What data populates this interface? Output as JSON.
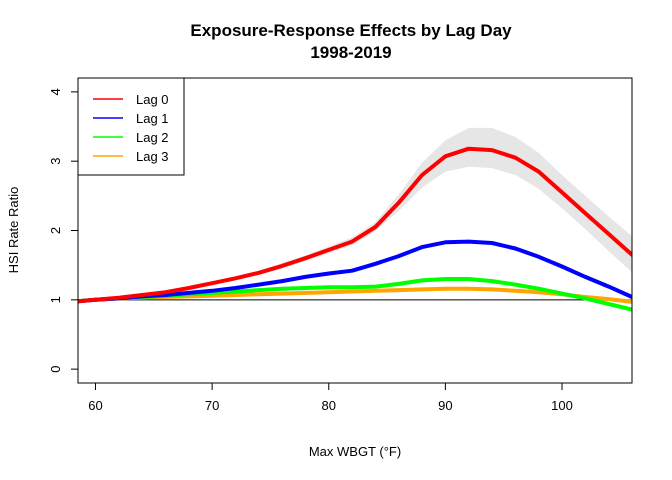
{
  "chart_data": {
    "type": "line",
    "title": "Exposure-Response Effects by Lag Day",
    "subtitle": "1998-2019",
    "xlabel": "Max WBGT (°F)",
    "ylabel": "HSI Rate Ratio",
    "xlim": [
      58.5,
      106
    ],
    "ylim": [
      -0.2,
      4.2
    ],
    "x_ticks": [
      60,
      70,
      80,
      90,
      100
    ],
    "y_ticks": [
      0,
      1,
      2,
      3,
      4
    ],
    "reference_line": 1,
    "legend_position": "top-left",
    "x": [
      58.5,
      60,
      62,
      64,
      66,
      68,
      70,
      72,
      74,
      76,
      78,
      80,
      82,
      84,
      86,
      88,
      90,
      92,
      94,
      96,
      98,
      100,
      102,
      104,
      106
    ],
    "series": [
      {
        "name": "Lag 0",
        "color": "#ff0000",
        "values": [
          0.98,
          1.0,
          1.03,
          1.07,
          1.11,
          1.17,
          1.24,
          1.31,
          1.39,
          1.49,
          1.6,
          1.72,
          1.84,
          2.05,
          2.4,
          2.8,
          3.07,
          3.18,
          3.16,
          3.05,
          2.85,
          2.55,
          2.25,
          1.95,
          1.65
        ],
        "ci_lower": [
          0.97,
          1.0,
          1.03,
          1.06,
          1.1,
          1.16,
          1.22,
          1.29,
          1.36,
          1.45,
          1.56,
          1.67,
          1.79,
          1.99,
          2.28,
          2.62,
          2.85,
          2.92,
          2.9,
          2.8,
          2.6,
          2.32,
          2.02,
          1.7,
          1.4
        ],
        "ci_upper": [
          0.99,
          1.0,
          1.04,
          1.08,
          1.12,
          1.18,
          1.26,
          1.33,
          1.42,
          1.53,
          1.64,
          1.77,
          1.9,
          2.12,
          2.52,
          2.98,
          3.3,
          3.48,
          3.48,
          3.35,
          3.12,
          2.8,
          2.5,
          2.2,
          1.92
        ]
      },
      {
        "name": "Lag 1",
        "color": "#0000ff",
        "values": [
          0.98,
          1.0,
          1.02,
          1.05,
          1.07,
          1.1,
          1.13,
          1.17,
          1.22,
          1.27,
          1.33,
          1.38,
          1.42,
          1.52,
          1.63,
          1.76,
          1.83,
          1.84,
          1.82,
          1.74,
          1.62,
          1.48,
          1.33,
          1.19,
          1.04
        ]
      },
      {
        "name": "Lag 2",
        "color": "#00ff00",
        "values": [
          0.98,
          1.0,
          1.02,
          1.04,
          1.06,
          1.08,
          1.1,
          1.12,
          1.14,
          1.16,
          1.17,
          1.18,
          1.18,
          1.19,
          1.23,
          1.28,
          1.3,
          1.3,
          1.27,
          1.22,
          1.16,
          1.09,
          1.02,
          0.94,
          0.86
        ]
      },
      {
        "name": "Lag 3",
        "color": "#ffa500",
        "values": [
          0.98,
          1.0,
          1.02,
          1.03,
          1.04,
          1.05,
          1.06,
          1.07,
          1.08,
          1.09,
          1.1,
          1.11,
          1.12,
          1.13,
          1.14,
          1.15,
          1.16,
          1.16,
          1.15,
          1.13,
          1.11,
          1.08,
          1.04,
          1.01,
          0.97
        ]
      }
    ]
  }
}
